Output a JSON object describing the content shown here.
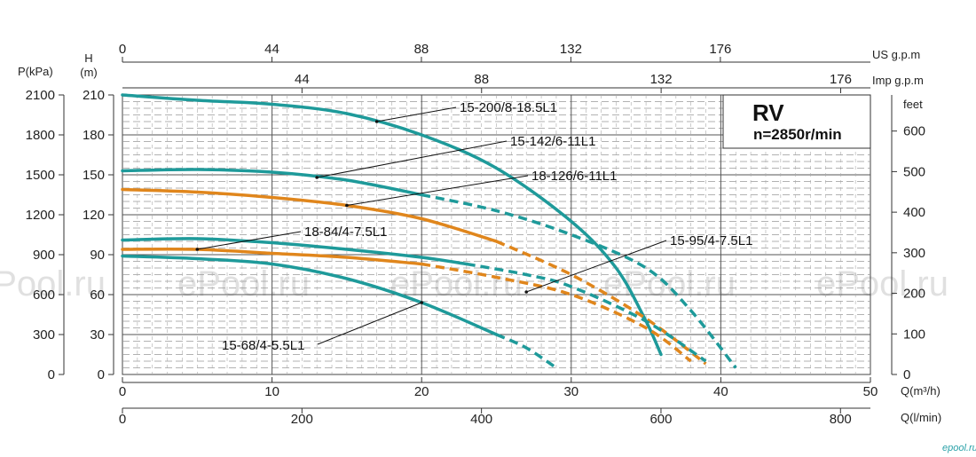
{
  "colors": {
    "teal": "#1e9a9a",
    "orange": "#e0861c",
    "grid": "#8a8a8a",
    "axis": "#333333"
  },
  "watermark": "ePool.ru",
  "brand": "epool.ru",
  "badge": {
    "title": "RV",
    "subtitle": "n=2850r/min"
  },
  "axes": {
    "y_kpa_title": "P(kPa)",
    "y_m_title_h": "H",
    "y_m_title_unit": "(m)",
    "y_feet_title": "feet",
    "top1_title": "US g.p.m",
    "top2_title": "Imp g.p.m",
    "x1_title": "Q(m³/h)",
    "x2_title": "Q(l/min)",
    "y_kpa_ticks": [
      "2100",
      "1800",
      "1500",
      "1200",
      "900",
      "600",
      "300",
      "0"
    ],
    "y_m_ticks": [
      "210",
      "180",
      "150",
      "120",
      "90",
      "60",
      "30",
      "0"
    ],
    "y_feet_ticks": [
      "600",
      "500",
      "400",
      "300",
      "200",
      "100",
      "0"
    ],
    "top1_ticks": [
      "0",
      "44",
      "88",
      "132",
      "176"
    ],
    "top2_ticks": [
      "44",
      "88",
      "132",
      "176"
    ],
    "x1_ticks": [
      "0",
      "10",
      "20",
      "30",
      "40",
      "50"
    ],
    "x2_ticks": [
      "0",
      "200",
      "400",
      "600",
      "800"
    ]
  },
  "chart_data": {
    "type": "line",
    "title": "RV n=2850r/min",
    "xlabel": "Q(m³/h)",
    "ylabel": "H (m)",
    "xlim": [
      0,
      50
    ],
    "ylim": [
      0,
      210
    ],
    "grid": true,
    "series": [
      {
        "name": "15-200/8-18.5L1",
        "color": "teal",
        "solid": [
          [
            0,
            210
          ],
          [
            5,
            206
          ],
          [
            10,
            203
          ],
          [
            15,
            196
          ],
          [
            20,
            180
          ],
          [
            25,
            155
          ],
          [
            30,
            115
          ],
          [
            33,
            80
          ],
          [
            35,
            40
          ],
          [
            36,
            15
          ]
        ],
        "dashed": []
      },
      {
        "name": "15-142/6-11L1",
        "color": "teal",
        "solid": [
          [
            0,
            153
          ],
          [
            5,
            154
          ],
          [
            10,
            152
          ],
          [
            15,
            146
          ],
          [
            20,
            135
          ]
        ],
        "dashed": [
          [
            20,
            135
          ],
          [
            25,
            123
          ],
          [
            30,
            105
          ],
          [
            35,
            80
          ],
          [
            38,
            48
          ],
          [
            41,
            5
          ]
        ]
      },
      {
        "name": "18-126/6-11L1",
        "color": "orange",
        "solid": [
          [
            0,
            139
          ],
          [
            5,
            137
          ],
          [
            10,
            133
          ],
          [
            15,
            127
          ],
          [
            20,
            117
          ],
          [
            25,
            100
          ]
        ],
        "dashed": [
          [
            25,
            100
          ],
          [
            30,
            75
          ],
          [
            35,
            42
          ],
          [
            39,
            8
          ]
        ]
      },
      {
        "name": "18-84/4-7.5L1",
        "color": "orange",
        "solid": [
          [
            0,
            94
          ],
          [
            5,
            94
          ],
          [
            10,
            91
          ],
          [
            15,
            88
          ],
          [
            20,
            83
          ]
        ],
        "dashed": [
          [
            20,
            83
          ],
          [
            25,
            73
          ],
          [
            30,
            60
          ],
          [
            35,
            35
          ],
          [
            38,
            10
          ]
        ]
      },
      {
        "name": "15-95/4-7.5L1",
        "color": "teal",
        "solid": [
          [
            0,
            101
          ],
          [
            5,
            102
          ],
          [
            10,
            99
          ],
          [
            15,
            94
          ],
          [
            20,
            88
          ],
          [
            23,
            83
          ]
        ],
        "dashed": [
          [
            23,
            83
          ],
          [
            27,
            75
          ],
          [
            30,
            66
          ],
          [
            35,
            40
          ],
          [
            39,
            10
          ]
        ]
      },
      {
        "name": "15-68/4-5.5L1",
        "color": "teal",
        "solid": [
          [
            0,
            89
          ],
          [
            5,
            87
          ],
          [
            10,
            83
          ],
          [
            15,
            72
          ],
          [
            20,
            54
          ],
          [
            25,
            30
          ]
        ],
        "dashed": [
          [
            25,
            30
          ],
          [
            27,
            20
          ],
          [
            29,
            5
          ]
        ]
      }
    ]
  }
}
